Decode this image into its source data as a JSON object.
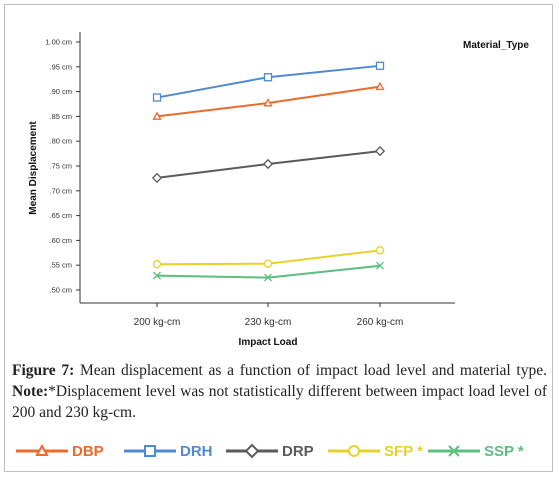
{
  "chart_data": {
    "type": "line",
    "categories": [
      "200 kg-cm",
      "230 kg-cm",
      "260 kg-cm"
    ],
    "xlabel": "Impact Load",
    "ylabel": "Mean Displacement",
    "ylim": [
      0.5,
      1.0
    ],
    "yticks": [
      "1.00 cm",
      ".95 cm",
      ".90 cm",
      ".85 cm",
      ".80 cm",
      ".75 cm",
      ".70 cm",
      ".65 cm",
      ".60 cm",
      ".55 cm",
      ".50 cm"
    ],
    "legend_title": "Material_Type",
    "series": [
      {
        "name": "DBP",
        "values": [
          0.85,
          0.877,
          0.91
        ],
        "color": "#ec6a2c",
        "marker": "triangle"
      },
      {
        "name": "DRH",
        "values": [
          0.888,
          0.929,
          0.952
        ],
        "color": "#4f8ad0",
        "marker": "square"
      },
      {
        "name": "DRP",
        "values": [
          0.726,
          0.754,
          0.78
        ],
        "color": "#5a5a5a",
        "marker": "diamond"
      },
      {
        "name": "SFP *",
        "values": [
          0.552,
          0.553,
          0.58
        ],
        "color": "#e8d12a",
        "marker": "circle"
      },
      {
        "name": "SSP *",
        "values": [
          0.529,
          0.525,
          0.549
        ],
        "color": "#5cbf80",
        "marker": "cross"
      }
    ]
  },
  "caption": {
    "figure_label": "Figure 7:",
    "figure_text": " Mean displacement as a function of impact load level and material type. ",
    "note_label": "Note:",
    "note_text": "*Displacement level was not statistically different between impact load level of 200 and 230 kg-cm."
  }
}
